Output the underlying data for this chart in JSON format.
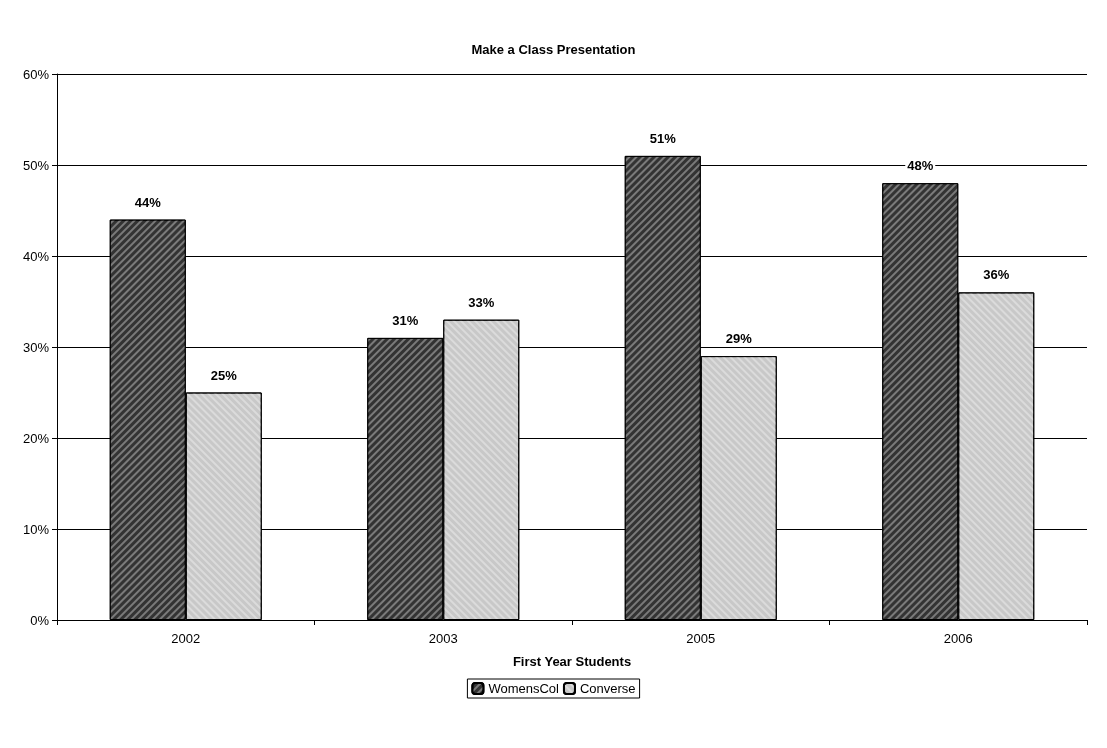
{
  "chart_data": {
    "type": "bar",
    "title": "Make a Class Presentation",
    "xlabel": "First Year Students",
    "categories": [
      "2002",
      "2003",
      "2005",
      "2006"
    ],
    "series": [
      {
        "name": "WomensCol",
        "color": "#333333",
        "values": [
          44,
          31,
          51,
          48
        ],
        "value_labels": [
          "44%",
          "31%",
          "51%",
          "48%"
        ]
      },
      {
        "name": "Converse",
        "color": "#c8c8c8",
        "values": [
          25,
          33,
          29,
          36
        ],
        "value_labels": [
          "25%",
          "33%",
          "29%",
          "36%"
        ]
      }
    ],
    "ylim": [
      0,
      60
    ],
    "yticks": [
      {
        "value": 0,
        "label": "0%"
      },
      {
        "value": 10,
        "label": "10%"
      },
      {
        "value": 20,
        "label": "20%"
      },
      {
        "value": 30,
        "label": "30%"
      },
      {
        "value": 40,
        "label": "40%"
      },
      {
        "value": 50,
        "label": "50%"
      },
      {
        "value": 60,
        "label": "60%"
      }
    ],
    "grid": "y",
    "legend": "bottom"
  }
}
